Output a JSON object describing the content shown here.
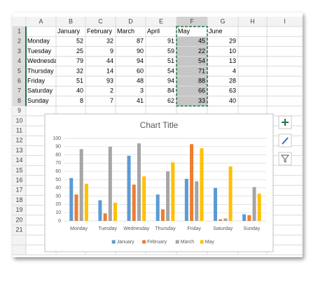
{
  "sheet": {
    "column_headers": [
      "A",
      "B",
      "C",
      "D",
      "E",
      "F",
      "G",
      "H",
      "I"
    ],
    "row_headers": [
      1,
      2,
      3,
      4,
      5,
      6,
      7,
      8,
      9,
      10,
      11,
      12,
      13,
      14,
      15,
      16,
      17,
      18,
      19,
      20,
      21
    ],
    "rows": [
      [
        null,
        "January",
        "February",
        "March",
        "April",
        "May",
        "June"
      ],
      [
        "Monday",
        52,
        32,
        87,
        91,
        45,
        29
      ],
      [
        "Tuesday",
        25,
        9,
        90,
        59,
        22,
        10
      ],
      [
        "Wednesday",
        79,
        44,
        94,
        51,
        54,
        13
      ],
      [
        "Thursday",
        32,
        14,
        60,
        54,
        71,
        4
      ],
      [
        "Friday",
        51,
        93,
        48,
        94,
        88,
        28
      ],
      [
        "Saturday",
        40,
        2,
        3,
        84,
        66,
        63
      ],
      [
        "Sunday",
        8,
        7,
        41,
        62,
        33,
        40
      ]
    ]
  },
  "chart_data": {
    "type": "bar",
    "title": "Chart Title",
    "categories": [
      "Monday",
      "Tuesday",
      "Wednesday",
      "Thursday",
      "Friday",
      "Saturday",
      "Sunday"
    ],
    "series": [
      {
        "name": "January",
        "color": "#5b9bd5",
        "values": [
          52,
          25,
          79,
          32,
          51,
          40,
          8
        ]
      },
      {
        "name": "February",
        "color": "#ed7d31",
        "values": [
          32,
          9,
          44,
          14,
          93,
          2,
          7
        ]
      },
      {
        "name": "March",
        "color": "#a5a5a5",
        "values": [
          87,
          90,
          94,
          60,
          48,
          3,
          41
        ]
      },
      {
        "name": "May",
        "color": "#ffc000",
        "values": [
          45,
          22,
          54,
          71,
          88,
          66,
          33
        ]
      }
    ],
    "ylim": [
      0,
      100
    ],
    "yticks": [
      0,
      10,
      20,
      30,
      40,
      50,
      60,
      70,
      80,
      90,
      100
    ],
    "grid": true,
    "legend": "bottom"
  }
}
